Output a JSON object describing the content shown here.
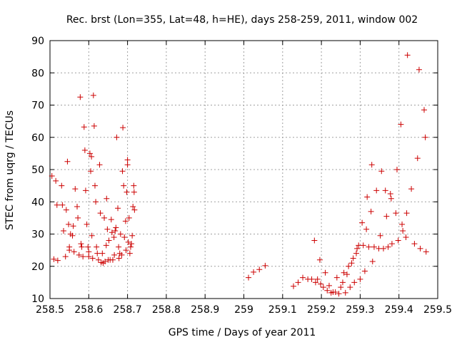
{
  "chart_data": {
    "type": "scatter",
    "title": "Rec. brst (Lon=355, Lat=48, h=HE), days 258-259, 2011, window 002",
    "xlabel": "GPS time / Days of year 2011",
    "ylabel": "STEC from uqrg / TECUs",
    "xlim": [
      258.5,
      259.5
    ],
    "ylim": [
      10,
      90
    ],
    "x_ticks": [
      "258.5",
      "258.6",
      "258.7",
      "258.8",
      "258.9",
      "259",
      "259.1",
      "259.2",
      "259.3",
      "259.4",
      "259.5"
    ],
    "y_ticks": [
      "10",
      "20",
      "30",
      "40",
      "50",
      "60",
      "70",
      "80",
      "90"
    ],
    "grid": true,
    "marker": "+",
    "marker_color": "#cc0000",
    "series": [
      {
        "points": [
          [
            258.505,
            48
          ],
          [
            258.51,
            22.2
          ],
          [
            258.515,
            46.5
          ],
          [
            258.518,
            39
          ],
          [
            258.52,
            21.8
          ],
          [
            258.53,
            45
          ],
          [
            258.532,
            39
          ],
          [
            258.535,
            31
          ],
          [
            258.54,
            23
          ],
          [
            258.542,
            37.5
          ],
          [
            258.545,
            52.5
          ],
          [
            258.548,
            33
          ],
          [
            258.55,
            26
          ],
          [
            258.55,
            25
          ],
          [
            258.553,
            30
          ],
          [
            258.558,
            29.5
          ],
          [
            258.56,
            32.5
          ],
          [
            258.562,
            24.5
          ],
          [
            258.565,
            44
          ],
          [
            258.57,
            38.5
          ],
          [
            258.572,
            35
          ],
          [
            258.575,
            23.5
          ],
          [
            258.578,
            72.5
          ],
          [
            258.58,
            27
          ],
          [
            258.582,
            26
          ],
          [
            258.585,
            23
          ],
          [
            258.588,
            63.2
          ],
          [
            258.59,
            56
          ],
          [
            258.592,
            43.5
          ],
          [
            258.595,
            33
          ],
          [
            258.598,
            26
          ],
          [
            258.6,
            24.5
          ],
          [
            258.6,
            23
          ],
          [
            258.603,
            55
          ],
          [
            258.605,
            49.5
          ],
          [
            258.607,
            54
          ],
          [
            258.608,
            29.5
          ],
          [
            258.61,
            22.5
          ],
          [
            258.612,
            73
          ],
          [
            258.614,
            63.5
          ],
          [
            258.616,
            45
          ],
          [
            258.618,
            40
          ],
          [
            258.62,
            26
          ],
          [
            258.622,
            24
          ],
          [
            258.625,
            22
          ],
          [
            258.628,
            51.5
          ],
          [
            258.63,
            36.5
          ],
          [
            258.632,
            21.2
          ],
          [
            258.635,
            24
          ],
          [
            258.637,
            21
          ],
          [
            258.64,
            35
          ],
          [
            258.642,
            21.5
          ],
          [
            258.645,
            26.5
          ],
          [
            258.646,
            41
          ],
          [
            258.648,
            31.5
          ],
          [
            258.65,
            22
          ],
          [
            258.652,
            28
          ],
          [
            258.655,
            22
          ],
          [
            258.658,
            34.5
          ],
          [
            258.66,
            30.5
          ],
          [
            258.662,
            22
          ],
          [
            258.665,
            29
          ],
          [
            258.666,
            23.5
          ],
          [
            258.668,
            31
          ],
          [
            258.67,
            32
          ],
          [
            258.672,
            60
          ],
          [
            258.675,
            38
          ],
          [
            258.677,
            26
          ],
          [
            258.678,
            22.5
          ],
          [
            258.68,
            24
          ],
          [
            258.682,
            30
          ],
          [
            258.685,
            23.5
          ],
          [
            258.687,
            49.5
          ],
          [
            258.688,
            63
          ],
          [
            258.69,
            45
          ],
          [
            258.692,
            29
          ],
          [
            258.695,
            34
          ],
          [
            258.696,
            25
          ],
          [
            258.698,
            43
          ],
          [
            258.7,
            53
          ],
          [
            258.7,
            51.5
          ],
          [
            258.702,
            27.5
          ],
          [
            258.704,
            35
          ],
          [
            258.706,
            24
          ],
          [
            258.708,
            26
          ],
          [
            258.71,
            27
          ],
          [
            258.712,
            29.5
          ],
          [
            258.714,
            38.5
          ],
          [
            258.716,
            45
          ],
          [
            258.717,
            43
          ],
          [
            258.718,
            37.5
          ],
          [
            259.012,
            16.5
          ],
          [
            259.025,
            18.2
          ],
          [
            259.04,
            19
          ],
          [
            259.055,
            20.2
          ],
          [
            259.128,
            13.8
          ],
          [
            259.14,
            15
          ],
          [
            259.152,
            16.5
          ],
          [
            259.165,
            16
          ],
          [
            259.175,
            16
          ],
          [
            259.182,
            28
          ],
          [
            259.185,
            15
          ],
          [
            259.19,
            16
          ],
          [
            259.196,
            22
          ],
          [
            259.198,
            14.5
          ],
          [
            259.205,
            13.5
          ],
          [
            259.21,
            18
          ],
          [
            259.215,
            12.5
          ],
          [
            259.22,
            14
          ],
          [
            259.225,
            11.8
          ],
          [
            259.23,
            12
          ],
          [
            259.236,
            12
          ],
          [
            259.24,
            16.5
          ],
          [
            259.245,
            11.5
          ],
          [
            259.25,
            13.5
          ],
          [
            259.255,
            15
          ],
          [
            259.258,
            18
          ],
          [
            259.262,
            11.8
          ],
          [
            259.266,
            17.5
          ],
          [
            259.27,
            20
          ],
          [
            259.274,
            13.5
          ],
          [
            259.278,
            21
          ],
          [
            259.282,
            22.5
          ],
          [
            259.285,
            15
          ],
          [
            259.29,
            24
          ],
          [
            259.292,
            25.5
          ],
          [
            259.296,
            26.5
          ],
          [
            259.3,
            16
          ],
          [
            259.305,
            33.5
          ],
          [
            259.308,
            26.5
          ],
          [
            259.312,
            18.5
          ],
          [
            259.316,
            31.5
          ],
          [
            259.318,
            41.5
          ],
          [
            259.322,
            26
          ],
          [
            259.328,
            37
          ],
          [
            259.33,
            51.5
          ],
          [
            259.332,
            21.5
          ],
          [
            259.336,
            26
          ],
          [
            259.342,
            43.5
          ],
          [
            259.348,
            25.5
          ],
          [
            259.352,
            29.5
          ],
          [
            259.355,
            49.5
          ],
          [
            259.36,
            25.5
          ],
          [
            259.365,
            43.5
          ],
          [
            259.368,
            35.5
          ],
          [
            259.372,
            26
          ],
          [
            259.378,
            42.5
          ],
          [
            259.38,
            41
          ],
          [
            259.382,
            27
          ],
          [
            259.392,
            36.5
          ],
          [
            259.395,
            50
          ],
          [
            259.398,
            28
          ],
          [
            259.405,
            64
          ],
          [
            259.408,
            33
          ],
          [
            259.41,
            31
          ],
          [
            259.418,
            29
          ],
          [
            259.42,
            36.5
          ],
          [
            259.422,
            85.5
          ],
          [
            259.432,
            44
          ],
          [
            259.44,
            27
          ],
          [
            259.448,
            53.5
          ],
          [
            259.452,
            81
          ],
          [
            259.455,
            25.5
          ],
          [
            259.465,
            68.5
          ],
          [
            259.468,
            60
          ],
          [
            259.47,
            24.5
          ]
        ]
      }
    ]
  }
}
